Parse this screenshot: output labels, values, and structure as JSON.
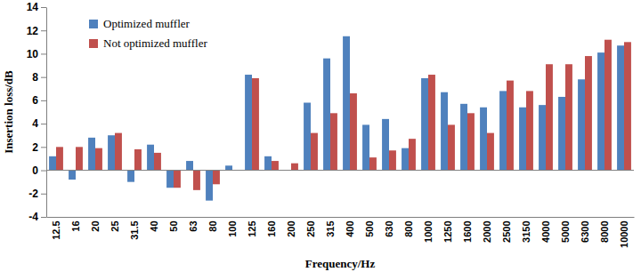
{
  "chart_data": {
    "type": "bar",
    "x_label": "Frequency/Hz",
    "y_label": "Insertion loss/dB",
    "categories": [
      "12.5",
      "16",
      "20",
      "25",
      "31.5",
      "40",
      "50",
      "63",
      "80",
      "100",
      "125",
      "160",
      "200",
      "250",
      "315",
      "400",
      "500",
      "630",
      "800",
      "1000",
      "1250",
      "1600",
      "2000",
      "2500",
      "3150",
      "4000",
      "5000",
      "6300",
      "8000",
      "10000"
    ],
    "series": [
      {
        "name": "Optimized muffler",
        "color": "#4f81bd",
        "values": [
          1.2,
          -0.8,
          2.8,
          3.0,
          -1.0,
          2.2,
          -1.5,
          0.8,
          -2.6,
          0.4,
          8.2,
          1.2,
          0,
          5.8,
          9.6,
          11.5,
          3.9,
          4.4,
          1.9,
          7.9,
          6.7,
          5.7,
          5.4,
          6.8,
          5.4,
          5.6,
          6.3,
          7.8,
          10.1,
          10.7
        ]
      },
      {
        "name": "Not optimized muffler",
        "color": "#c0504d",
        "values": [
          2.0,
          2.0,
          1.9,
          3.2,
          1.8,
          1.5,
          -1.5,
          -1.7,
          -1.2,
          0,
          7.9,
          0.8,
          0.6,
          3.2,
          4.9,
          6.6,
          1.1,
          1.7,
          2.7,
          8.2,
          3.9,
          4.9,
          3.2,
          7.7,
          6.8,
          9.1,
          9.1,
          9.8,
          11.2,
          11.0
        ]
      }
    ],
    "ylim": [
      -4,
      14
    ],
    "yticks": [
      -4,
      -2,
      0,
      2,
      4,
      6,
      8,
      10,
      12,
      14
    ],
    "grid": false,
    "legend": "top-left"
  }
}
